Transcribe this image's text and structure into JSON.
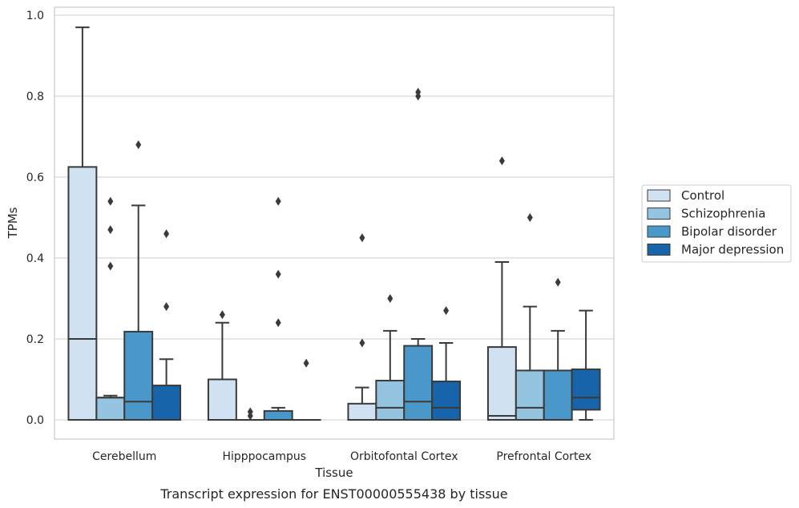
{
  "chart_data": {
    "type": "box",
    "caption": "Transcript expression for ENST00000555438 by tissue",
    "xlabel": "Tissue",
    "ylabel": "TPMs",
    "ylim": [
      -0.045,
      1.02
    ],
    "yticks": [
      0.0,
      0.2,
      0.4,
      0.6,
      0.8,
      1.0
    ],
    "ytick_labels": [
      "0.0",
      "0.2",
      "0.4",
      "0.6",
      "0.8",
      "1.0"
    ],
    "grid": "horizontal",
    "legend_position": "right",
    "categories": [
      "Cerebellum",
      "Hipppocampus",
      "Orbitofontal Cortex",
      "Prefrontal Cortex"
    ],
    "series": [
      {
        "name": "Control",
        "color": "#d0e1f2",
        "boxes": [
          {
            "whisker_low": 0.0,
            "q1": 0.0,
            "median": 0.2,
            "q3": 0.625,
            "whisker_high": 0.97,
            "outliers": []
          },
          {
            "whisker_low": 0.0,
            "q1": 0.0,
            "median": 0.0,
            "q3": 0.1,
            "whisker_high": 0.24,
            "outliers": [
              0.26
            ]
          },
          {
            "whisker_low": 0.0,
            "q1": 0.0,
            "median": 0.0,
            "q3": 0.04,
            "whisker_high": 0.08,
            "outliers": [
              0.19,
              0.45
            ]
          },
          {
            "whisker_low": 0.0,
            "q1": 0.0,
            "median": 0.01,
            "q3": 0.18,
            "whisker_high": 0.39,
            "outliers": [
              0.64
            ]
          }
        ]
      },
      {
        "name": "Schizophrenia",
        "color": "#94c4df",
        "boxes": [
          {
            "whisker_low": 0.0,
            "q1": 0.0,
            "median": 0.055,
            "q3": 0.055,
            "whisker_high": 0.06,
            "outliers": [
              0.38,
              0.47,
              0.54
            ]
          },
          {
            "whisker_low": 0.0,
            "q1": 0.0,
            "median": 0.0,
            "q3": 0.0,
            "whisker_high": 0.0,
            "outliers": [
              0.01,
              0.02
            ]
          },
          {
            "whisker_low": 0.0,
            "q1": 0.0,
            "median": 0.03,
            "q3": 0.097,
            "whisker_high": 0.22,
            "outliers": [
              0.3
            ]
          },
          {
            "whisker_low": 0.0,
            "q1": 0.0,
            "median": 0.03,
            "q3": 0.122,
            "whisker_high": 0.28,
            "outliers": [
              0.5
            ]
          }
        ]
      },
      {
        "name": "Bipolar disorder",
        "color": "#4a98c9",
        "boxes": [
          {
            "whisker_low": 0.0,
            "q1": 0.0,
            "median": 0.045,
            "q3": 0.218,
            "whisker_high": 0.53,
            "outliers": [
              0.68
            ]
          },
          {
            "whisker_low": 0.0,
            "q1": 0.0,
            "median": 0.0,
            "q3": 0.022,
            "whisker_high": 0.03,
            "outliers": [
              0.24,
              0.36,
              0.54
            ]
          },
          {
            "whisker_low": 0.0,
            "q1": 0.0,
            "median": 0.045,
            "q3": 0.183,
            "whisker_high": 0.2,
            "outliers": [
              0.8,
              0.81
            ]
          },
          {
            "whisker_low": 0.0,
            "q1": 0.0,
            "median": 0.0,
            "q3": 0.122,
            "whisker_high": 0.22,
            "outliers": [
              0.34
            ]
          }
        ]
      },
      {
        "name": "Major depression",
        "color": "#1764ab",
        "boxes": [
          {
            "whisker_low": 0.0,
            "q1": 0.0,
            "median": 0.0,
            "q3": 0.085,
            "whisker_high": 0.15,
            "outliers": [
              0.28,
              0.46
            ]
          },
          {
            "whisker_low": 0.0,
            "q1": 0.0,
            "median": 0.0,
            "q3": 0.0,
            "whisker_high": 0.0,
            "outliers": [
              0.14
            ]
          },
          {
            "whisker_low": 0.0,
            "q1": 0.0,
            "median": 0.03,
            "q3": 0.095,
            "whisker_high": 0.19,
            "outliers": [
              0.27
            ]
          },
          {
            "whisker_low": 0.0,
            "q1": 0.025,
            "median": 0.055,
            "q3": 0.125,
            "whisker_high": 0.27,
            "outliers": []
          }
        ]
      }
    ]
  }
}
